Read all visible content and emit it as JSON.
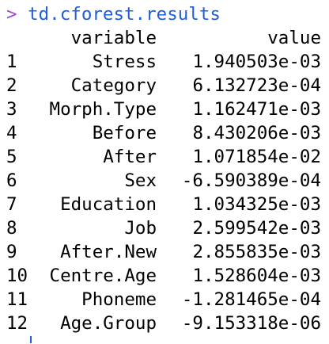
{
  "console": {
    "prompt_symbol": ">",
    "command": "td.cforest.results",
    "prompt_color": "#9b4dca",
    "command_color": "#1f5ed6"
  },
  "table": {
    "headers": [
      "variable",
      "value"
    ],
    "rows": [
      {
        "index": "1",
        "variable": "Stress",
        "value": "1.940503e-03"
      },
      {
        "index": "2",
        "variable": "Category",
        "value": "6.132723e-04"
      },
      {
        "index": "3",
        "variable": "Morph.Type",
        "value": "1.162471e-03"
      },
      {
        "index": "4",
        "variable": "Before",
        "value": "8.430206e-03"
      },
      {
        "index": "5",
        "variable": "After",
        "value": "1.071854e-02"
      },
      {
        "index": "6",
        "variable": "Sex",
        "value": "-6.590389e-04"
      },
      {
        "index": "7",
        "variable": "Education",
        "value": "1.034325e-03"
      },
      {
        "index": "8",
        "variable": "Job",
        "value": "2.599542e-03"
      },
      {
        "index": "9",
        "variable": "After.New",
        "value": "2.855835e-03"
      },
      {
        "index": "10",
        "variable": "Centre.Age",
        "value": "1.528604e-03"
      },
      {
        "index": "11",
        "variable": "Phoneme",
        "value": "-1.281465e-04"
      },
      {
        "index": "12",
        "variable": "Age.Group",
        "value": "-9.153318e-06"
      }
    ]
  }
}
